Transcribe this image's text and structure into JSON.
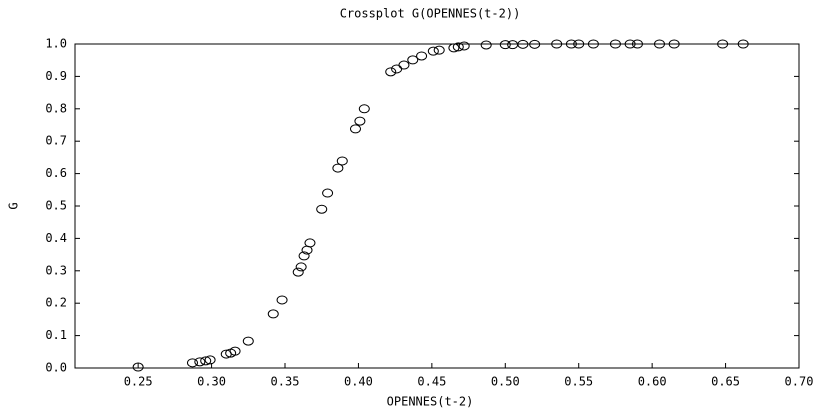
{
  "chart_data": {
    "type": "scatter",
    "title": "Crossplot G(OPENNES(t-2))",
    "xlabel": "OPENNES(t-2)",
    "ylabel": "G",
    "color": "#000000",
    "xlim": [
      0.207,
      0.7
    ],
    "ylim": [
      0,
      1
    ],
    "xticks": [
      0.25,
      {
        "value": 0.3,
        "label": "0.30"
      },
      0.35,
      {
        "value": 0.4,
        "label": "0.40"
      },
      0.45,
      {
        "value": 0.5,
        "label": "0.50"
      },
      0.55,
      {
        "value": 0.6,
        "label": "0.60"
      },
      0.65,
      {
        "value": 0.7,
        "label": "0.70"
      }
    ],
    "yticks": [
      {
        "value": 0,
        "label": "0.0"
      },
      0.1,
      0.2,
      0.3,
      0.4,
      0.5,
      0.6,
      0.7,
      0.8,
      0.9,
      {
        "value": 1,
        "label": "1.0"
      }
    ],
    "x": [
      0.25,
      0.287,
      0.292,
      0.296,
      0.299,
      0.31,
      0.313,
      0.316,
      0.325,
      0.342,
      0.348,
      0.359,
      0.361,
      0.363,
      0.365,
      0.367,
      0.375,
      0.379,
      0.386,
      0.389,
      0.398,
      0.401,
      0.404,
      0.422,
      0.426,
      0.431,
      0.437,
      0.443,
      0.451,
      0.455,
      0.465,
      0.468,
      0.472,
      0.487,
      0.5,
      0.505,
      0.512,
      0.52,
      0.535,
      0.545,
      0.55,
      0.56,
      0.575,
      0.585,
      0.59,
      0.605,
      0.615,
      0.648,
      0.662
    ],
    "values": [
      0.003,
      0.016,
      0.019,
      0.022,
      0.025,
      0.043,
      0.046,
      0.052,
      0.083,
      0.167,
      0.21,
      0.296,
      0.312,
      0.346,
      0.364,
      0.386,
      0.49,
      0.54,
      0.617,
      0.639,
      0.738,
      0.762,
      0.8,
      0.914,
      0.923,
      0.935,
      0.951,
      0.963,
      0.978,
      0.981,
      0.988,
      0.991,
      0.994,
      0.997,
      0.998,
      0.998,
      0.999,
      0.999,
      1.0,
      1.0,
      1.0,
      1.0,
      1.0,
      1.0,
      1.0,
      1.0,
      1.0,
      1.0,
      1.0
    ]
  }
}
